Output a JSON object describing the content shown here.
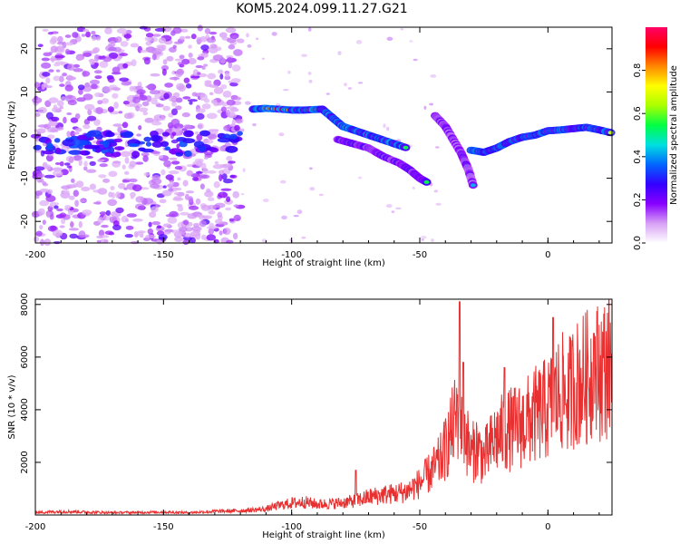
{
  "figure_title": "KOM5.2024.099.11.27.G21",
  "chart_data": [
    {
      "type": "heatmap",
      "xlabel": "Height of straight line (km)",
      "ylabel": "Frequency (Hz)",
      "xlim": [
        -200,
        25
      ],
      "ylim": [
        -25,
        25
      ],
      "xticks": [
        -200,
        -150,
        -100,
        -50,
        0
      ],
      "yticks": [
        -20,
        -10,
        0,
        10,
        20
      ],
      "xtick_labels": [
        "-200",
        "-150",
        "-100",
        "-50",
        "0"
      ],
      "ytick_labels": [
        "-20",
        "-10",
        "0",
        "10",
        "20"
      ],
      "colorbar": {
        "label": "Normalized spectral amplitude",
        "range": [
          0,
          1
        ],
        "ticks": [
          0.0,
          0.2,
          0.4,
          0.6,
          0.8
        ],
        "tick_labels": [
          "0.0",
          "0.2",
          "0.4",
          "0.6",
          "0.8"
        ],
        "colors": [
          "#ffffff",
          "#d8a0f5",
          "#8800ff",
          "#3300ff",
          "#0066ff",
          "#00e0e0",
          "#00ff44",
          "#aaff00",
          "#ffff00",
          "#ff8800",
          "#ff0000",
          "#ff0066"
        ]
      },
      "features": {
        "noise_region_x": [
          -200,
          -120
        ],
        "noise_band_center_hz": -2,
        "traces": [
          {
            "name": "",
            "x": [
              -115,
              -110,
              -100,
              -95,
              -88,
              -84,
              -80,
              -75,
              -70,
              -65,
              -60,
              -55
            ],
            "y": [
              6,
              6.2,
              5.8,
              5.8,
              6,
              4,
              2,
              1,
              0,
              -1,
              -2,
              -3
            ],
            "peak": 0.9
          },
          {
            "name": "",
            "x": [
              -82,
              -76,
              -70,
              -64,
              -58,
              -54,
              -50,
              -47
            ],
            "y": [
              -1,
              -2,
              -3,
              -5,
              -6.5,
              -8,
              -10,
              -11
            ],
            "peak": 0.55
          },
          {
            "name": "",
            "x": [
              -44,
              -40,
              -37,
              -34,
              -31,
              -29
            ],
            "y": [
              4.5,
              2,
              -1,
              -4,
              -8,
              -12
            ],
            "peak": 0.45
          },
          {
            "name": "",
            "x": [
              -30,
              -25,
              -20,
              -15,
              -10,
              -5,
              0,
              5,
              10,
              15,
              20,
              25
            ],
            "y": [
              -3.5,
              -4,
              -3,
              -1.5,
              -0.5,
              0,
              1,
              1.2,
              1.5,
              1.8,
              1.2,
              0.5
            ],
            "peak": 0.85
          }
        ]
      }
    },
    {
      "type": "line",
      "xlabel": "Height of straight line (km)",
      "ylabel": "SNR (10 * v/v)",
      "xlim": [
        -200,
        25
      ],
      "ylim": [
        0,
        8200
      ],
      "xticks": [
        -200,
        -150,
        -100,
        -50,
        0
      ],
      "yticks": [
        2000,
        4000,
        6000,
        8000
      ],
      "xtick_labels": [
        "-200",
        "-150",
        "-100",
        "-50",
        "0"
      ],
      "ytick_labels": [
        "2000",
        "4000",
        "6000",
        "8000"
      ],
      "series": [
        {
          "name": "",
          "color": "#e83030",
          "x": [
            -200,
            -190,
            -180,
            -170,
            -160,
            -150,
            -140,
            -130,
            -120,
            -110,
            -105,
            -100,
            -95,
            -90,
            -85,
            -80,
            -75,
            -70,
            -65,
            -60,
            -55,
            -50,
            -45,
            -42,
            -40,
            -38,
            -35,
            -33,
            -30,
            -28,
            -25,
            -20,
            -15,
            -10,
            -5,
            0,
            5,
            8,
            10,
            15,
            20,
            25
          ],
          "y": [
            100,
            150,
            120,
            100,
            110,
            120,
            100,
            150,
            180,
            250,
            400,
            500,
            550,
            450,
            480,
            520,
            600,
            750,
            850,
            900,
            1000,
            1350,
            1900,
            2300,
            2800,
            3400,
            4400,
            3800,
            2500,
            2900,
            2400,
            3300,
            3600,
            3800,
            4200,
            4500,
            5200,
            5000,
            5500,
            5800,
            6100,
            6400
          ],
          "spikes": [
            {
              "x": -34.5,
              "y": 8100
            },
            {
              "x": -33,
              "y": 5800
            },
            {
              "x": -75,
              "y": 1700
            },
            {
              "x": -17,
              "y": 5600
            },
            {
              "x": 2,
              "y": 7500
            },
            {
              "x": 18,
              "y": 6900
            }
          ]
        }
      ]
    }
  ]
}
